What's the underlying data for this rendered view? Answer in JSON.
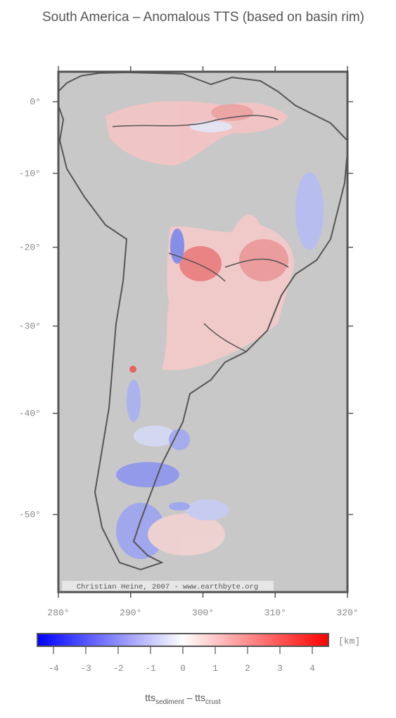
{
  "map": {
    "title": "South America – Anomalous TTS (based on basin rim)",
    "credit": "Christian Heine, 2007 - www.earthbyte.org",
    "xlim": [
      280,
      320
    ],
    "ylim": [
      -56.5,
      4.2
    ],
    "xticks": [
      {
        "value": 280,
        "label": "280°"
      },
      {
        "value": 290,
        "label": "290°"
      },
      {
        "value": 300,
        "label": "300°"
      },
      {
        "value": 310,
        "label": "310°"
      },
      {
        "value": 320,
        "label": "320°"
      }
    ],
    "yticks": [
      {
        "value": 0,
        "label": "0°"
      },
      {
        "value": -10,
        "label": "-10°"
      },
      {
        "value": -20,
        "label": "-20°"
      },
      {
        "value": -30,
        "label": "-30°"
      },
      {
        "value": -40,
        "label": "-40°"
      },
      {
        "value": -50,
        "label": "-50°"
      }
    ],
    "colorbar": {
      "clim": [
        -4.5,
        4.5
      ],
      "ticks": [
        -4,
        -3,
        -2,
        -1,
        0,
        1,
        2,
        3,
        4
      ],
      "colors": [
        "#0000ff",
        "#ffffff",
        "#ff0000"
      ],
      "unit": "[km]",
      "label": {
        "main1": "tts",
        "sub1": "sediment",
        "main2": " – tts",
        "sub2": "crust"
      }
    }
  }
}
